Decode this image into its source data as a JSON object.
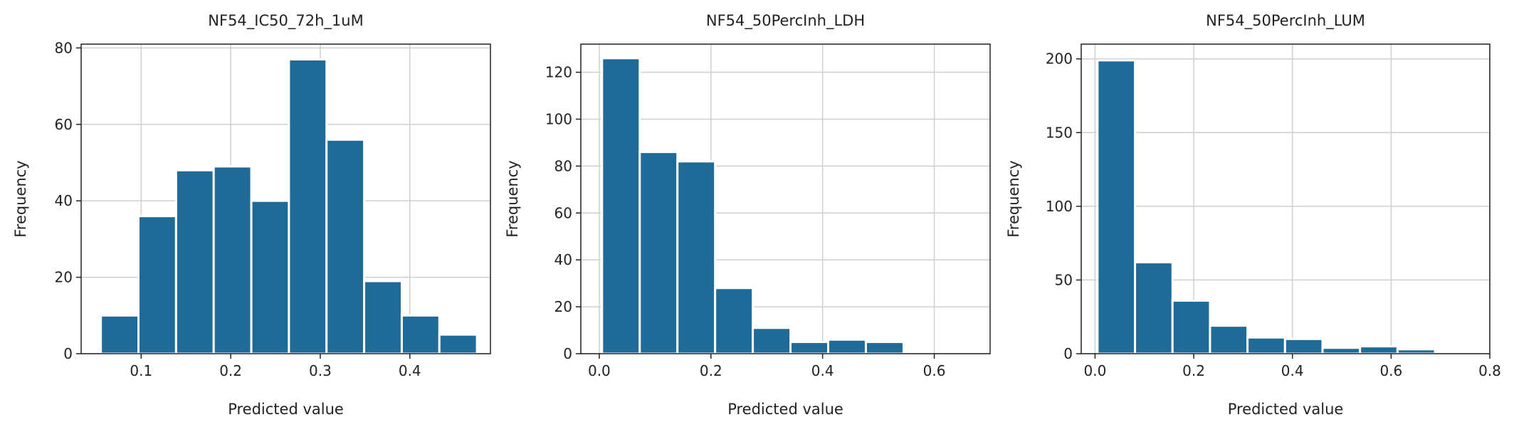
{
  "colors": {
    "bar": "#1f6a97"
  },
  "chart_data": [
    {
      "type": "bar",
      "title": "NF54_IC50_72h_1uM",
      "xlabel": "Predicted value",
      "ylabel": "Frequency",
      "grid": true,
      "xlim": [
        0.033,
        0.49
      ],
      "ylim": [
        0,
        81
      ],
      "xticks": [
        0.1,
        0.2,
        0.3,
        0.4
      ],
      "xtick_labels": [
        "0.1",
        "0.2",
        "0.3",
        "0.4"
      ],
      "yticks": [
        0,
        20,
        40,
        60,
        80
      ],
      "ytick_labels": [
        "0",
        "20",
        "40",
        "60",
        "80"
      ],
      "bin_edges": [
        0.055,
        0.097,
        0.139,
        0.181,
        0.223,
        0.265,
        0.307,
        0.349,
        0.391,
        0.433,
        0.475
      ],
      "values": [
        10,
        36,
        48,
        49,
        40,
        77,
        56,
        19,
        10,
        5
      ]
    },
    {
      "type": "bar",
      "title": "NF54_50PercInh_LDH",
      "xlabel": "Predicted value",
      "ylabel": "Frequency",
      "grid": true,
      "xlim": [
        -0.033,
        0.7
      ],
      "ylim": [
        0,
        132
      ],
      "xticks": [
        0.0,
        0.2,
        0.4,
        0.6
      ],
      "xtick_labels": [
        "0.0",
        "0.2",
        "0.4",
        "0.6"
      ],
      "yticks": [
        0,
        20,
        40,
        60,
        80,
        100,
        120
      ],
      "ytick_labels": [
        "0",
        "20",
        "40",
        "60",
        "80",
        "100",
        "120"
      ],
      "bin_edges": [
        0.005,
        0.0725,
        0.14,
        0.2075,
        0.275,
        0.3425,
        0.41,
        0.4775,
        0.545
      ],
      "values": [
        126,
        86,
        82,
        28,
        11,
        5,
        6,
        5
      ]
    },
    {
      "type": "bar",
      "title": "NF54_50PercInh_LUM",
      "xlabel": "Predicted value",
      "ylabel": "Frequency",
      "grid": true,
      "xlim": [
        -0.028,
        0.8
      ],
      "ylim": [
        0,
        210
      ],
      "xticks": [
        0.0,
        0.2,
        0.4,
        0.6,
        0.8
      ],
      "xtick_labels": [
        "0.0",
        "0.2",
        "0.4",
        "0.6",
        "0.8"
      ],
      "yticks": [
        0,
        50,
        100,
        150,
        200
      ],
      "ytick_labels": [
        "0",
        "50",
        "100",
        "150",
        "200"
      ],
      "bin_edges": [
        0.005,
        0.081,
        0.157,
        0.233,
        0.309,
        0.385,
        0.461,
        0.537,
        0.613,
        0.689
      ],
      "values": [
        199,
        62,
        36,
        19,
        11,
        10,
        4,
        5,
        3
      ]
    }
  ]
}
